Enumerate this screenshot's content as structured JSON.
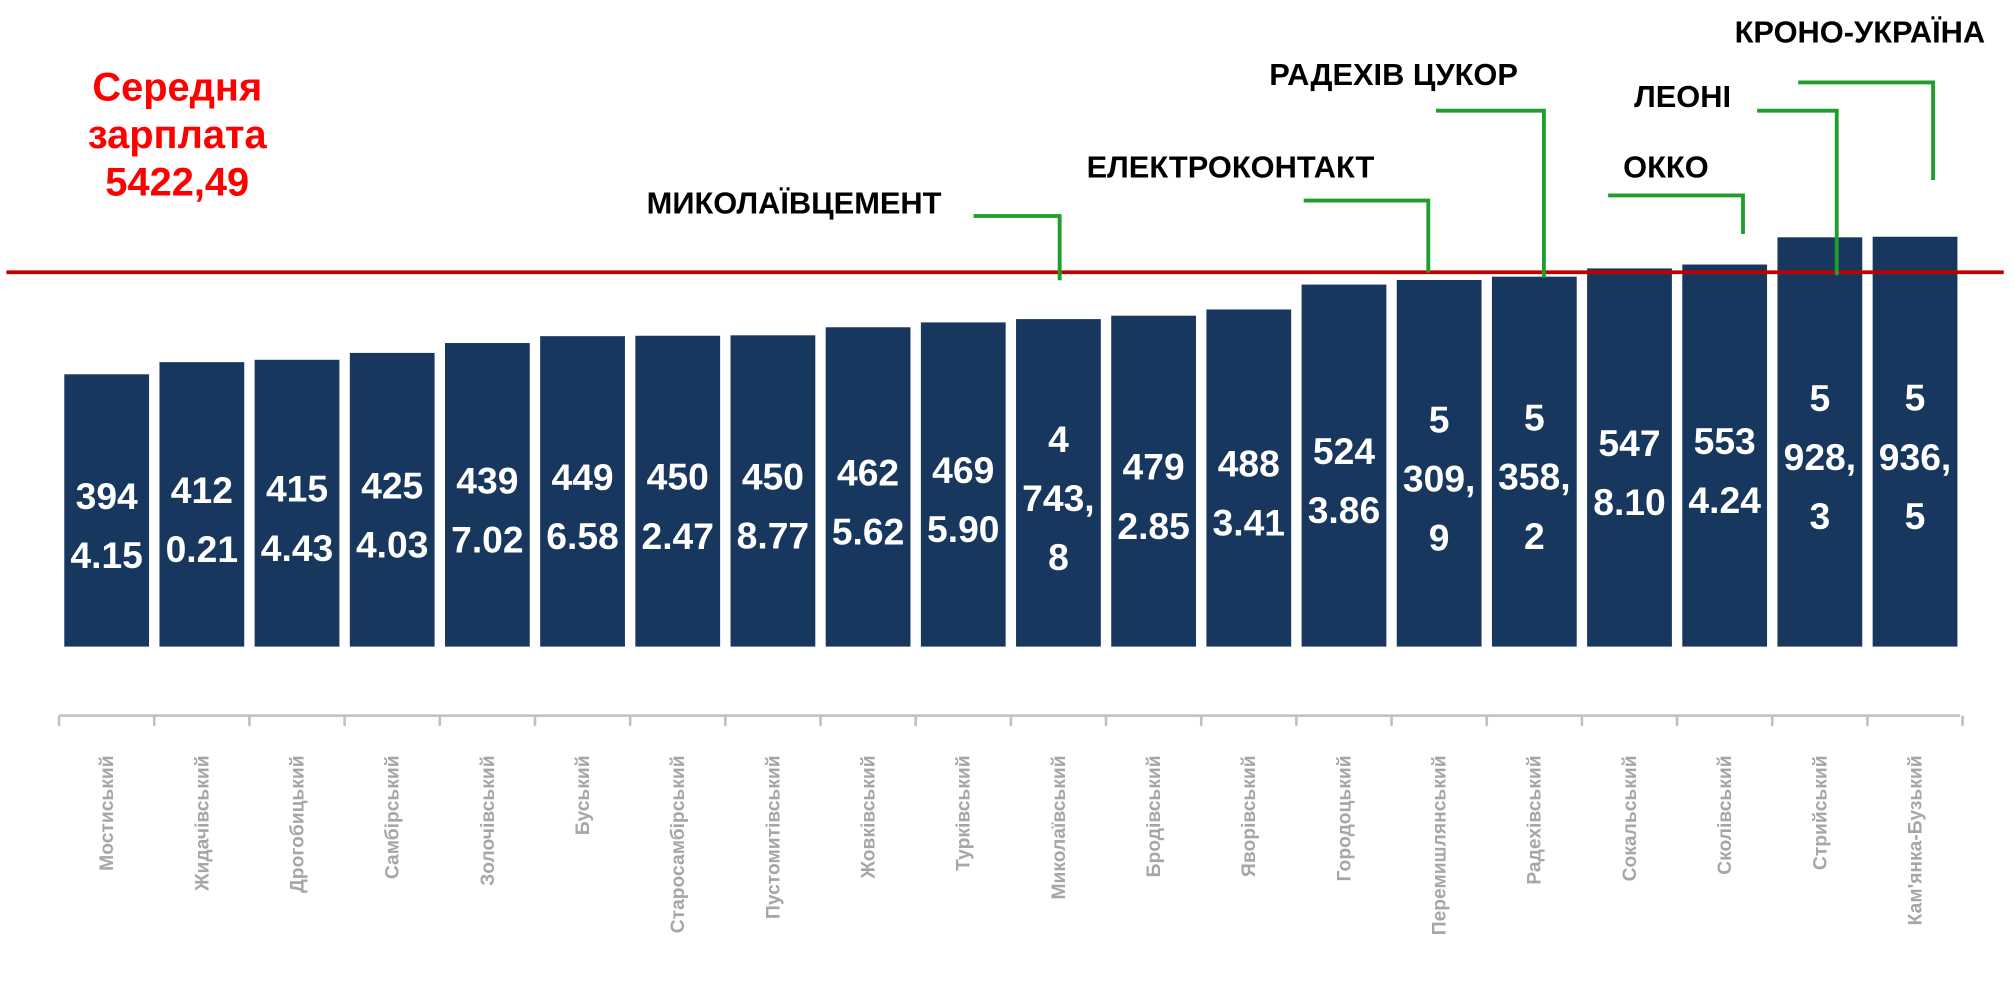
{
  "chart_data": {
    "type": "bar",
    "categories": [
      "Мостиський",
      "Жидачівський",
      "Дрогобицький",
      "Самбірський",
      "Золочівський",
      "Буський",
      "Старосамбірський",
      "Пустомитівський",
      "Жовківський",
      "Турківський",
      "Миколаївський",
      "Бродівський",
      "Яворівський",
      "Городоцький",
      "Перемишлянський",
      "Радехівський",
      "Сокальський",
      "Сколівський",
      "Стрийський",
      "Кам'янка-Бузький"
    ],
    "values": [
      3944.15,
      4120.21,
      4154.43,
      4254.03,
      4397.02,
      4496.58,
      4502.47,
      4508.77,
      4625.62,
      4695.9,
      4743.8,
      4792.85,
      4883.41,
      5243.86,
      5309.9,
      5358.2,
      5478.1,
      5534.24,
      5928.3,
      5936.5
    ],
    "value_labels": [
      "3944.15",
      "4120.21",
      "4154.43",
      "4254.03",
      "4397.02",
      "4496.58",
      "4502.47",
      "4508.77",
      "4625.62",
      "4695.90",
      "4 743,8",
      "4792.85",
      "4883.41",
      "5243.86",
      "5 309,9",
      "5 358,2",
      "5478.10",
      "5534.24",
      "5 928,3",
      "5 936,5"
    ],
    "color": "#17375e",
    "ylim": [
      -1000,
      6200
    ],
    "reference_line": {
      "value": 5422.49,
      "color": "#c00000",
      "label": [
        "Середня",
        "зарплата",
        "5422,49"
      ]
    },
    "annotations": [
      {
        "text": "МИКОЛАЇВЦЕМЕНТ",
        "category": "Миколаївський"
      },
      {
        "text": "ЕЛЕКТРОКОНТАКТ",
        "category": "Перемишлянський"
      },
      {
        "text": "РАДЕХІВ ЦУКОР",
        "category": "Радехівський"
      },
      {
        "text": "ОККО",
        "category": "Сколівський"
      },
      {
        "text": "ЛЕОНІ",
        "category": "Стрийський"
      },
      {
        "text": "КРОНО-УКРАЇНА",
        "category": "Кам'янка-Бузький"
      }
    ]
  }
}
